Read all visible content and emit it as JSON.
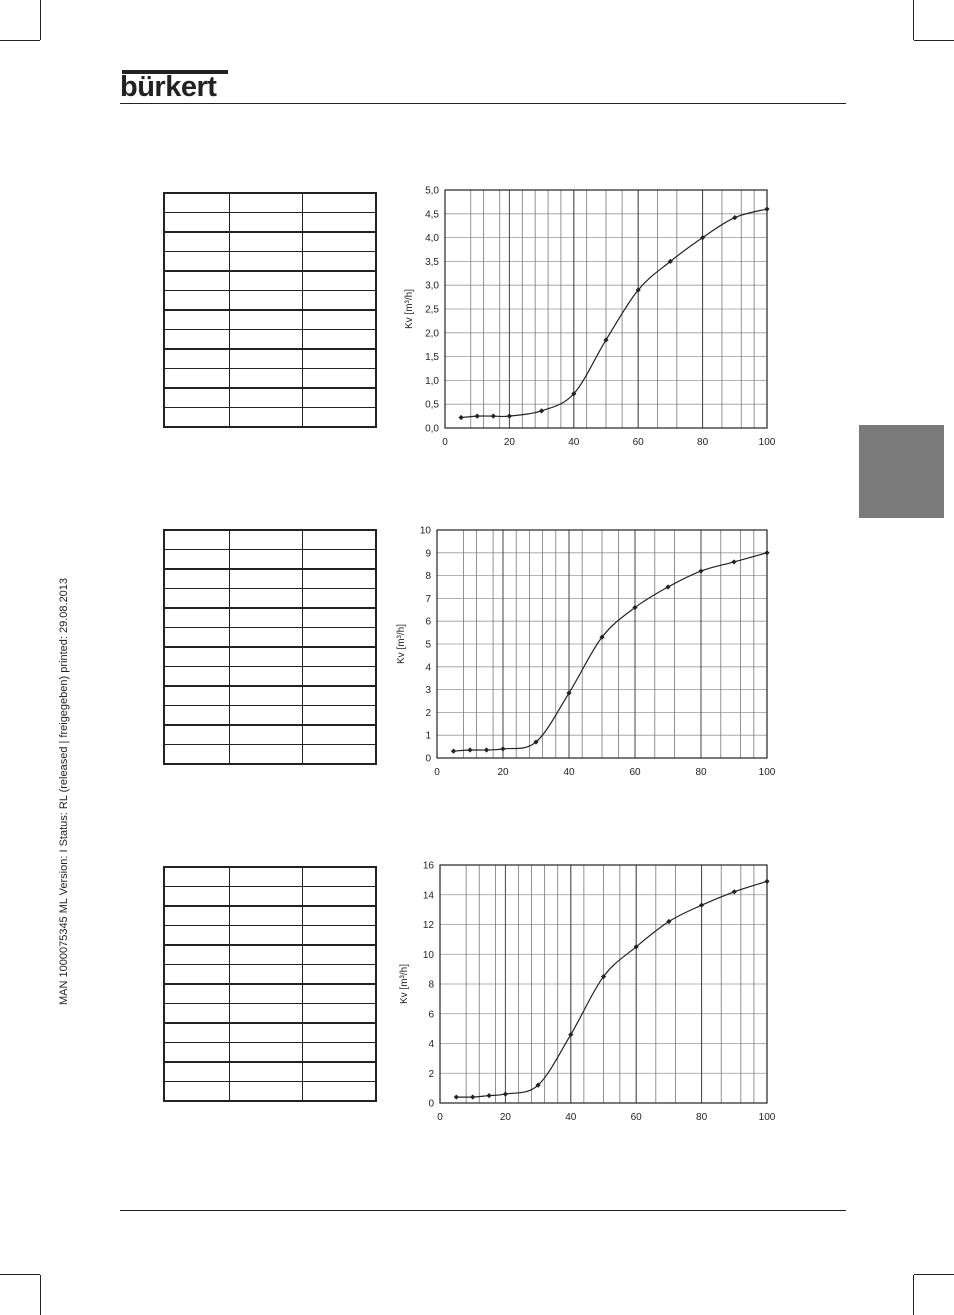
{
  "brand": {
    "logo_text": "bürkert"
  },
  "side_note": "MAN 1000075345 ML Version: I Status: RL (released | freigegeben) printed: 29.08.2013",
  "tables": [
    {
      "rows": 12,
      "cols": 3
    },
    {
      "rows": 12,
      "cols": 3
    },
    {
      "rows": 12,
      "cols": 3
    }
  ],
  "chart_data": [
    {
      "type": "line",
      "ylabel": "Kv [m³/h]",
      "xlabel": "",
      "xlim": [
        0,
        100
      ],
      "ylim": [
        0,
        5
      ],
      "xticks": [
        "0",
        "20",
        "40",
        "60",
        "80",
        "100"
      ],
      "yticks": [
        "0,0",
        "0,5",
        "1,0",
        "1,5",
        "2,0",
        "2,5",
        "3,0",
        "3,5",
        "4,0",
        "4,5",
        "5,0"
      ],
      "grid": true,
      "series": [
        {
          "x": [
            5,
            10,
            15,
            20,
            30,
            40,
            50,
            60,
            70,
            80,
            90,
            100
          ],
          "y": [
            0.22,
            0.25,
            0.25,
            0.25,
            0.36,
            0.72,
            1.85,
            2.9,
            3.5,
            4.0,
            4.42,
            4.6
          ]
        }
      ]
    },
    {
      "type": "line",
      "ylabel": "Kv [m³/h]",
      "xlabel": "",
      "xlim": [
        0,
        100
      ],
      "ylim": [
        0,
        10
      ],
      "xticks": [
        "0",
        "20",
        "40",
        "60",
        "80",
        "100"
      ],
      "yticks": [
        "0",
        "1",
        "2",
        "3",
        "4",
        "5",
        "6",
        "7",
        "8",
        "9",
        "10"
      ],
      "grid": true,
      "series": [
        {
          "x": [
            5,
            10,
            15,
            20,
            30,
            40,
            50,
            60,
            70,
            80,
            90,
            100
          ],
          "y": [
            0.3,
            0.35,
            0.35,
            0.4,
            0.7,
            2.85,
            5.3,
            6.6,
            7.5,
            8.2,
            8.6,
            9.0
          ]
        }
      ]
    },
    {
      "type": "line",
      "ylabel": "Kv [m³/h]",
      "xlabel": "",
      "xlim": [
        0,
        100
      ],
      "ylim": [
        0,
        16
      ],
      "xticks": [
        "0",
        "20",
        "40",
        "60",
        "80",
        "100"
      ],
      "yticks": [
        "0",
        "2",
        "4",
        "6",
        "8",
        "10",
        "12",
        "14",
        "16"
      ],
      "grid": true,
      "series": [
        {
          "x": [
            5,
            10,
            15,
            20,
            30,
            40,
            50,
            60,
            70,
            80,
            90,
            100
          ],
          "y": [
            0.4,
            0.4,
            0.5,
            0.6,
            1.2,
            4.6,
            8.5,
            10.5,
            12.2,
            13.3,
            14.2,
            14.9
          ]
        }
      ]
    }
  ]
}
